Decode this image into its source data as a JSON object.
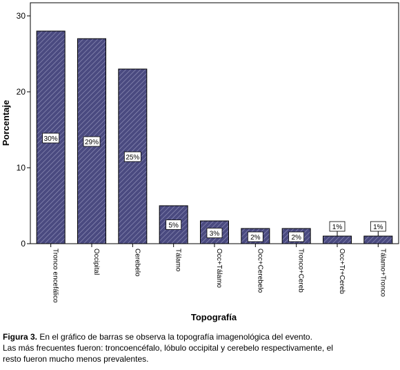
{
  "chart_data": {
    "type": "bar",
    "categories": [
      "Tronco encefálico",
      "Occipital",
      "Cerebelo",
      "Tálamo",
      "Occ+Tálamo",
      "Occ+Cerebelo",
      "Tronco+Cereb",
      "Occ+Tr+Cereb",
      "Tálamo+Tronco"
    ],
    "values": [
      28,
      27,
      23,
      5,
      3,
      2,
      2,
      1,
      1
    ],
    "data_labels": [
      "30%",
      "29%",
      "25%",
      "5%",
      "3%",
      "2%",
      "2%",
      "1%",
      "1%"
    ],
    "xlabel": "Topografía",
    "ylabel": "Porcentaje",
    "ylim": [
      0,
      30
    ],
    "yticks": [
      0,
      10,
      20,
      30
    ],
    "grid": false,
    "colors": {
      "bar": "#4a4a80",
      "hatch": "#9090b8",
      "axis": "#000000",
      "label_box": "#ffffff"
    }
  },
  "caption": {
    "figure_label": "Figura 3.",
    "line1": " En el gráfico de barras se observa la topografía imagenológica del evento.",
    "line2": "Las más frecuentes fueron: troncoencéfalo, lóbulo occipital y cerebelo respectivamente, el",
    "line3": "resto fueron mucho menos prevalentes."
  }
}
